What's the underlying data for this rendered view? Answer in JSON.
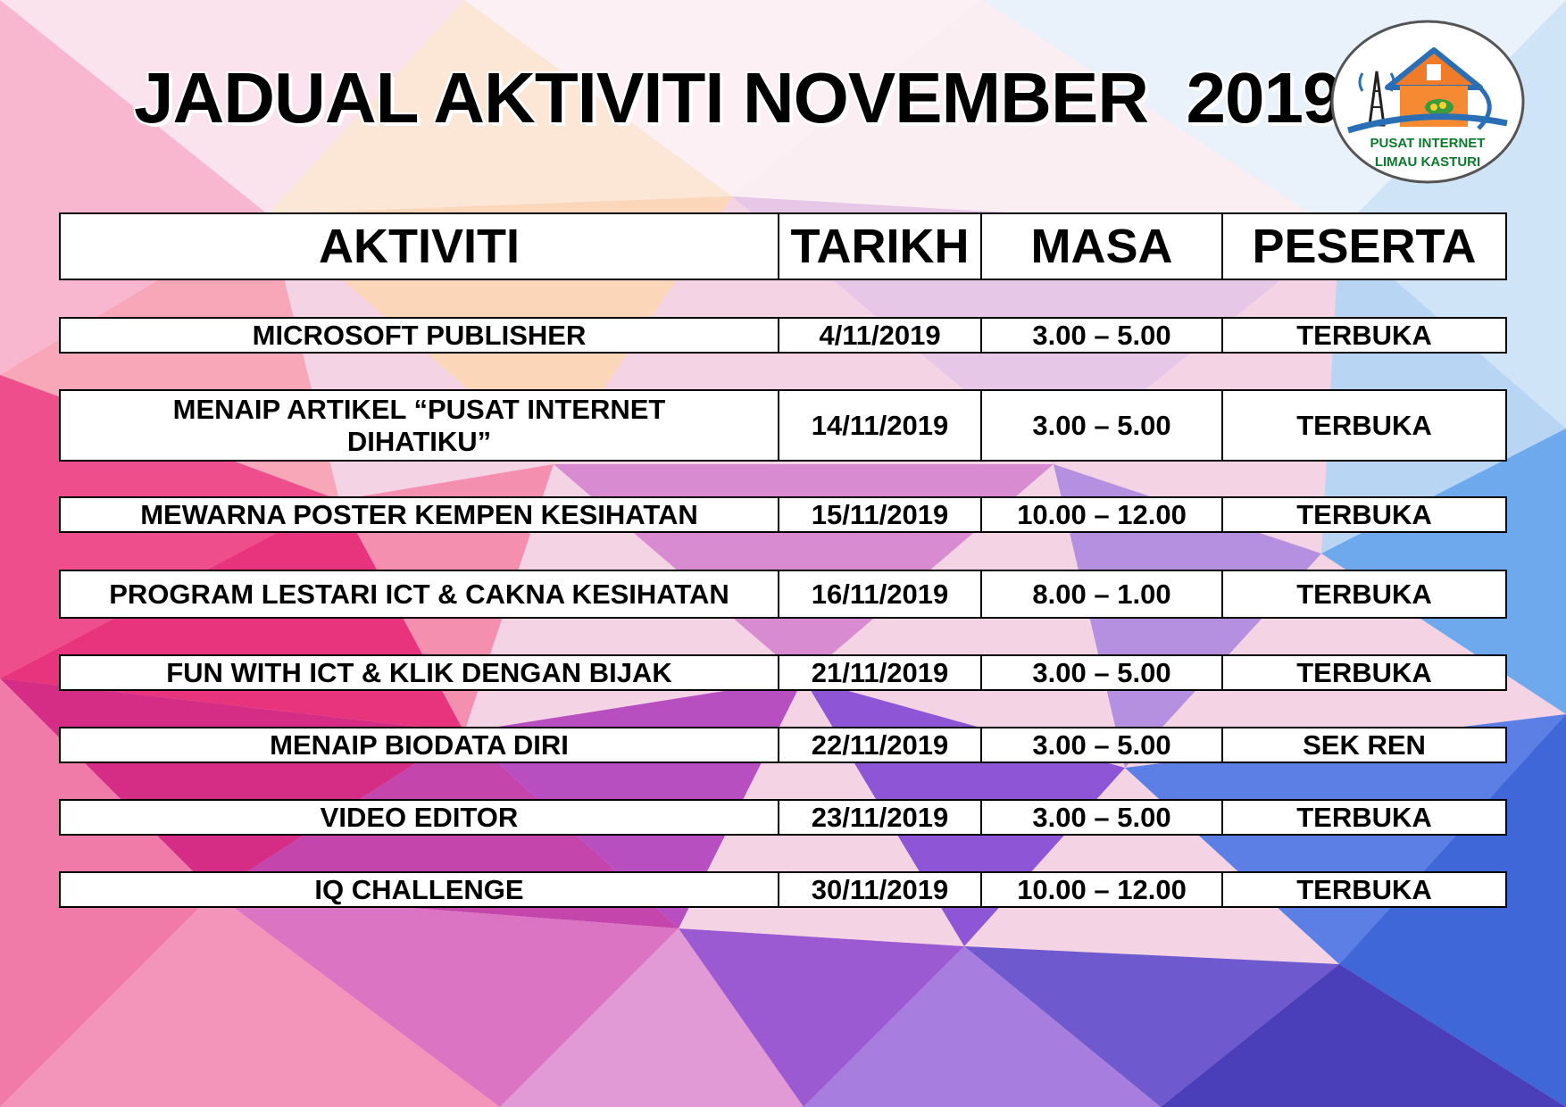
{
  "title": "JADUAL AKTIVITI NOVEMBER  2019",
  "logo": {
    "line1": "PUSAT INTERNET",
    "line2": "LIMAU KASTURI"
  },
  "table": {
    "headers": [
      "AKTIVITI",
      "TARIKH",
      "MASA",
      "PESERTA"
    ],
    "rows": [
      {
        "aktiviti": "MICROSOFT PUBLISHER",
        "tarikh": "4/11/2019",
        "masa": "3.00 – 5.00",
        "peserta": "TERBUKA"
      },
      {
        "aktiviti": "MENAIP ARTIKEL “PUSAT INTERNET DIHATIKU”",
        "tarikh": "14/11/2019",
        "masa": "3.00 – 5.00",
        "peserta": "TERBUKA"
      },
      {
        "aktiviti": "MEWARNA POSTER KEMPEN KESIHATAN",
        "tarikh": "15/11/2019",
        "masa": "10.00 – 12.00",
        "peserta": "TERBUKA"
      },
      {
        "aktiviti": "PROGRAM LESTARI ICT & CAKNA KESIHATAN",
        "tarikh": "16/11/2019",
        "masa": "8.00 – 1.00",
        "peserta": "TERBUKA"
      },
      {
        "aktiviti": "FUN WITH ICT & KLIK DENGAN BIJAK",
        "tarikh": "21/11/2019",
        "masa": "3.00 – 5.00",
        "peserta": "TERBUKA"
      },
      {
        "aktiviti": "MENAIP BIODATA DIRI",
        "tarikh": "22/11/2019",
        "masa": "3.00 – 5.00",
        "peserta": "SEK REN"
      },
      {
        "aktiviti": "VIDEO EDITOR",
        "tarikh": "23/11/2019",
        "masa": "3.00 – 5.00",
        "peserta": "TERBUKA"
      },
      {
        "aktiviti": "IQ CHALLENGE",
        "tarikh": "30/11/2019",
        "masa": "10.00 – 12.00",
        "peserta": "TERBUKA"
      }
    ]
  }
}
